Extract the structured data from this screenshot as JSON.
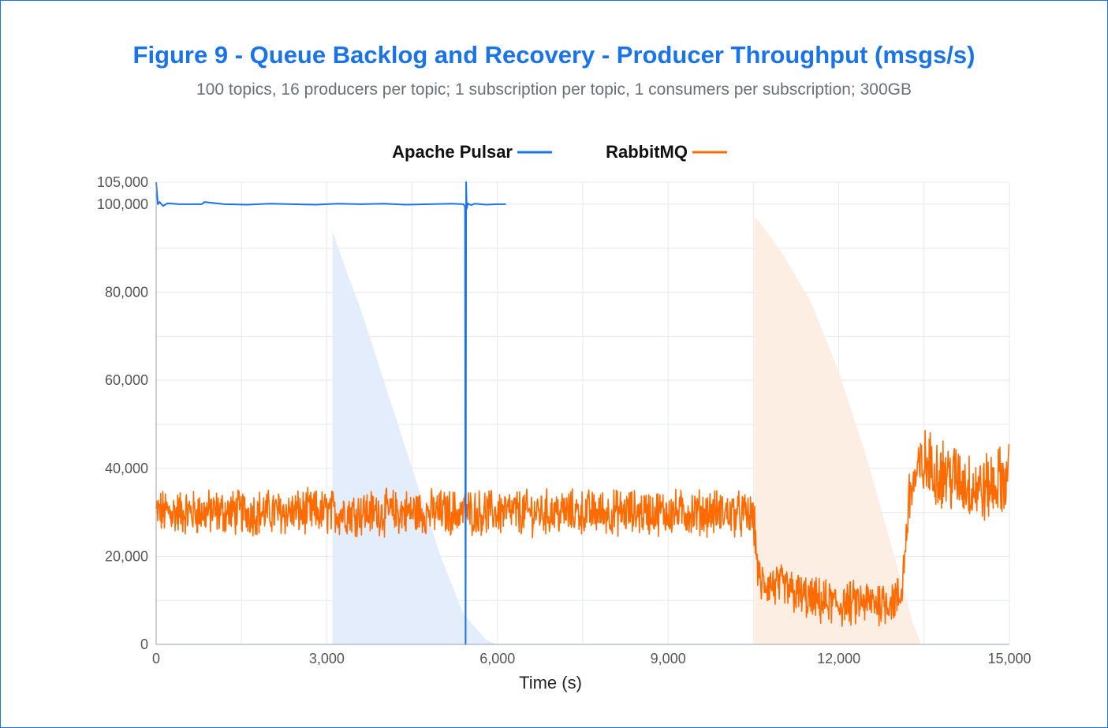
{
  "chart_data": {
    "type": "line",
    "title": "Figure 9 - Queue Backlog and Recovery - Producer Throughput (msgs/s)",
    "subtitle": "100 topics, 16 producers per topic; 1 subscription per topic, 1 consumers per subscription; 300GB",
    "xlabel": "Time (s)",
    "ylabel": "",
    "xlim": [
      0,
      15000
    ],
    "ylim": [
      0,
      105000
    ],
    "x_ticks": [
      0,
      3000,
      6000,
      9000,
      12000,
      15000
    ],
    "x_tick_labels": [
      "0",
      "3,000",
      "6,000",
      "9,000",
      "12,000",
      "15,000"
    ],
    "y_ticks": [
      0,
      20000,
      40000,
      60000,
      80000,
      100000,
      105000
    ],
    "y_tick_labels": [
      "0",
      "20,000",
      "40,000",
      "60,000",
      "80,000",
      "100,000",
      "105,000"
    ],
    "grid": true,
    "legend_position": "top-center",
    "series": [
      {
        "name": "Apache Pulsar",
        "color": "#1a73e8",
        "x": [
          0,
          30,
          60,
          120,
          200,
          400,
          800,
          850,
          1200,
          1600,
          2000,
          2400,
          2800,
          3200,
          3600,
          4000,
          4400,
          4800,
          5200,
          5400,
          5430,
          5440,
          5450,
          5460,
          5480,
          5500,
          5540,
          5600,
          5800,
          6000,
          6150
        ],
        "y": [
          105000,
          100000,
          100500,
          99600,
          100200,
          100000,
          100000,
          100500,
          100000,
          99900,
          100100,
          100000,
          99900,
          100100,
          100000,
          100100,
          99900,
          100000,
          100100,
          100000,
          99500,
          0,
          105000,
          99000,
          100200,
          100000,
          99800,
          100100,
          99900,
          100000,
          100000
        ]
      },
      {
        "name": "RabbitMQ",
        "color": "#ff6b00",
        "x": [
          0,
          500,
          1000,
          1500,
          2000,
          2500,
          3000,
          3500,
          4000,
          4500,
          5000,
          5500,
          6000,
          6500,
          7000,
          7500,
          8000,
          8500,
          9000,
          9500,
          10000,
          10500,
          10600,
          11000,
          11500,
          12000,
          12500,
          13000,
          13100,
          13250,
          13500,
          14000,
          14500,
          15000
        ],
        "y": [
          30000,
          30000,
          30000,
          30000,
          30000,
          30000,
          30000,
          30000,
          30000,
          30000,
          30000,
          30000,
          30000,
          30000,
          30000,
          30000,
          30000,
          30000,
          30000,
          30000,
          30000,
          29000,
          14000,
          13000,
          10000,
          9000,
          9500,
          10000,
          11000,
          35000,
          41000,
          38000,
          35000,
          38000
        ]
      }
    ],
    "shaded_backlog_areas": [
      {
        "series": "Apache Pulsar",
        "color": "#e3edfb",
        "x": [
          3100,
          3200,
          3600,
          4000,
          4500,
          5000,
          5400,
          5800,
          6000
        ],
        "y": [
          94000,
          90000,
          76000,
          60000,
          40000,
          20000,
          7000,
          1000,
          0
        ]
      },
      {
        "series": "RabbitMQ",
        "color": "#fdeee3",
        "x": [
          10520,
          10600,
          11000,
          11500,
          12000,
          12500,
          13000,
          13300,
          13450
        ],
        "y": [
          97000,
          96000,
          89000,
          78000,
          62000,
          42000,
          19000,
          5000,
          0
        ]
      }
    ]
  }
}
